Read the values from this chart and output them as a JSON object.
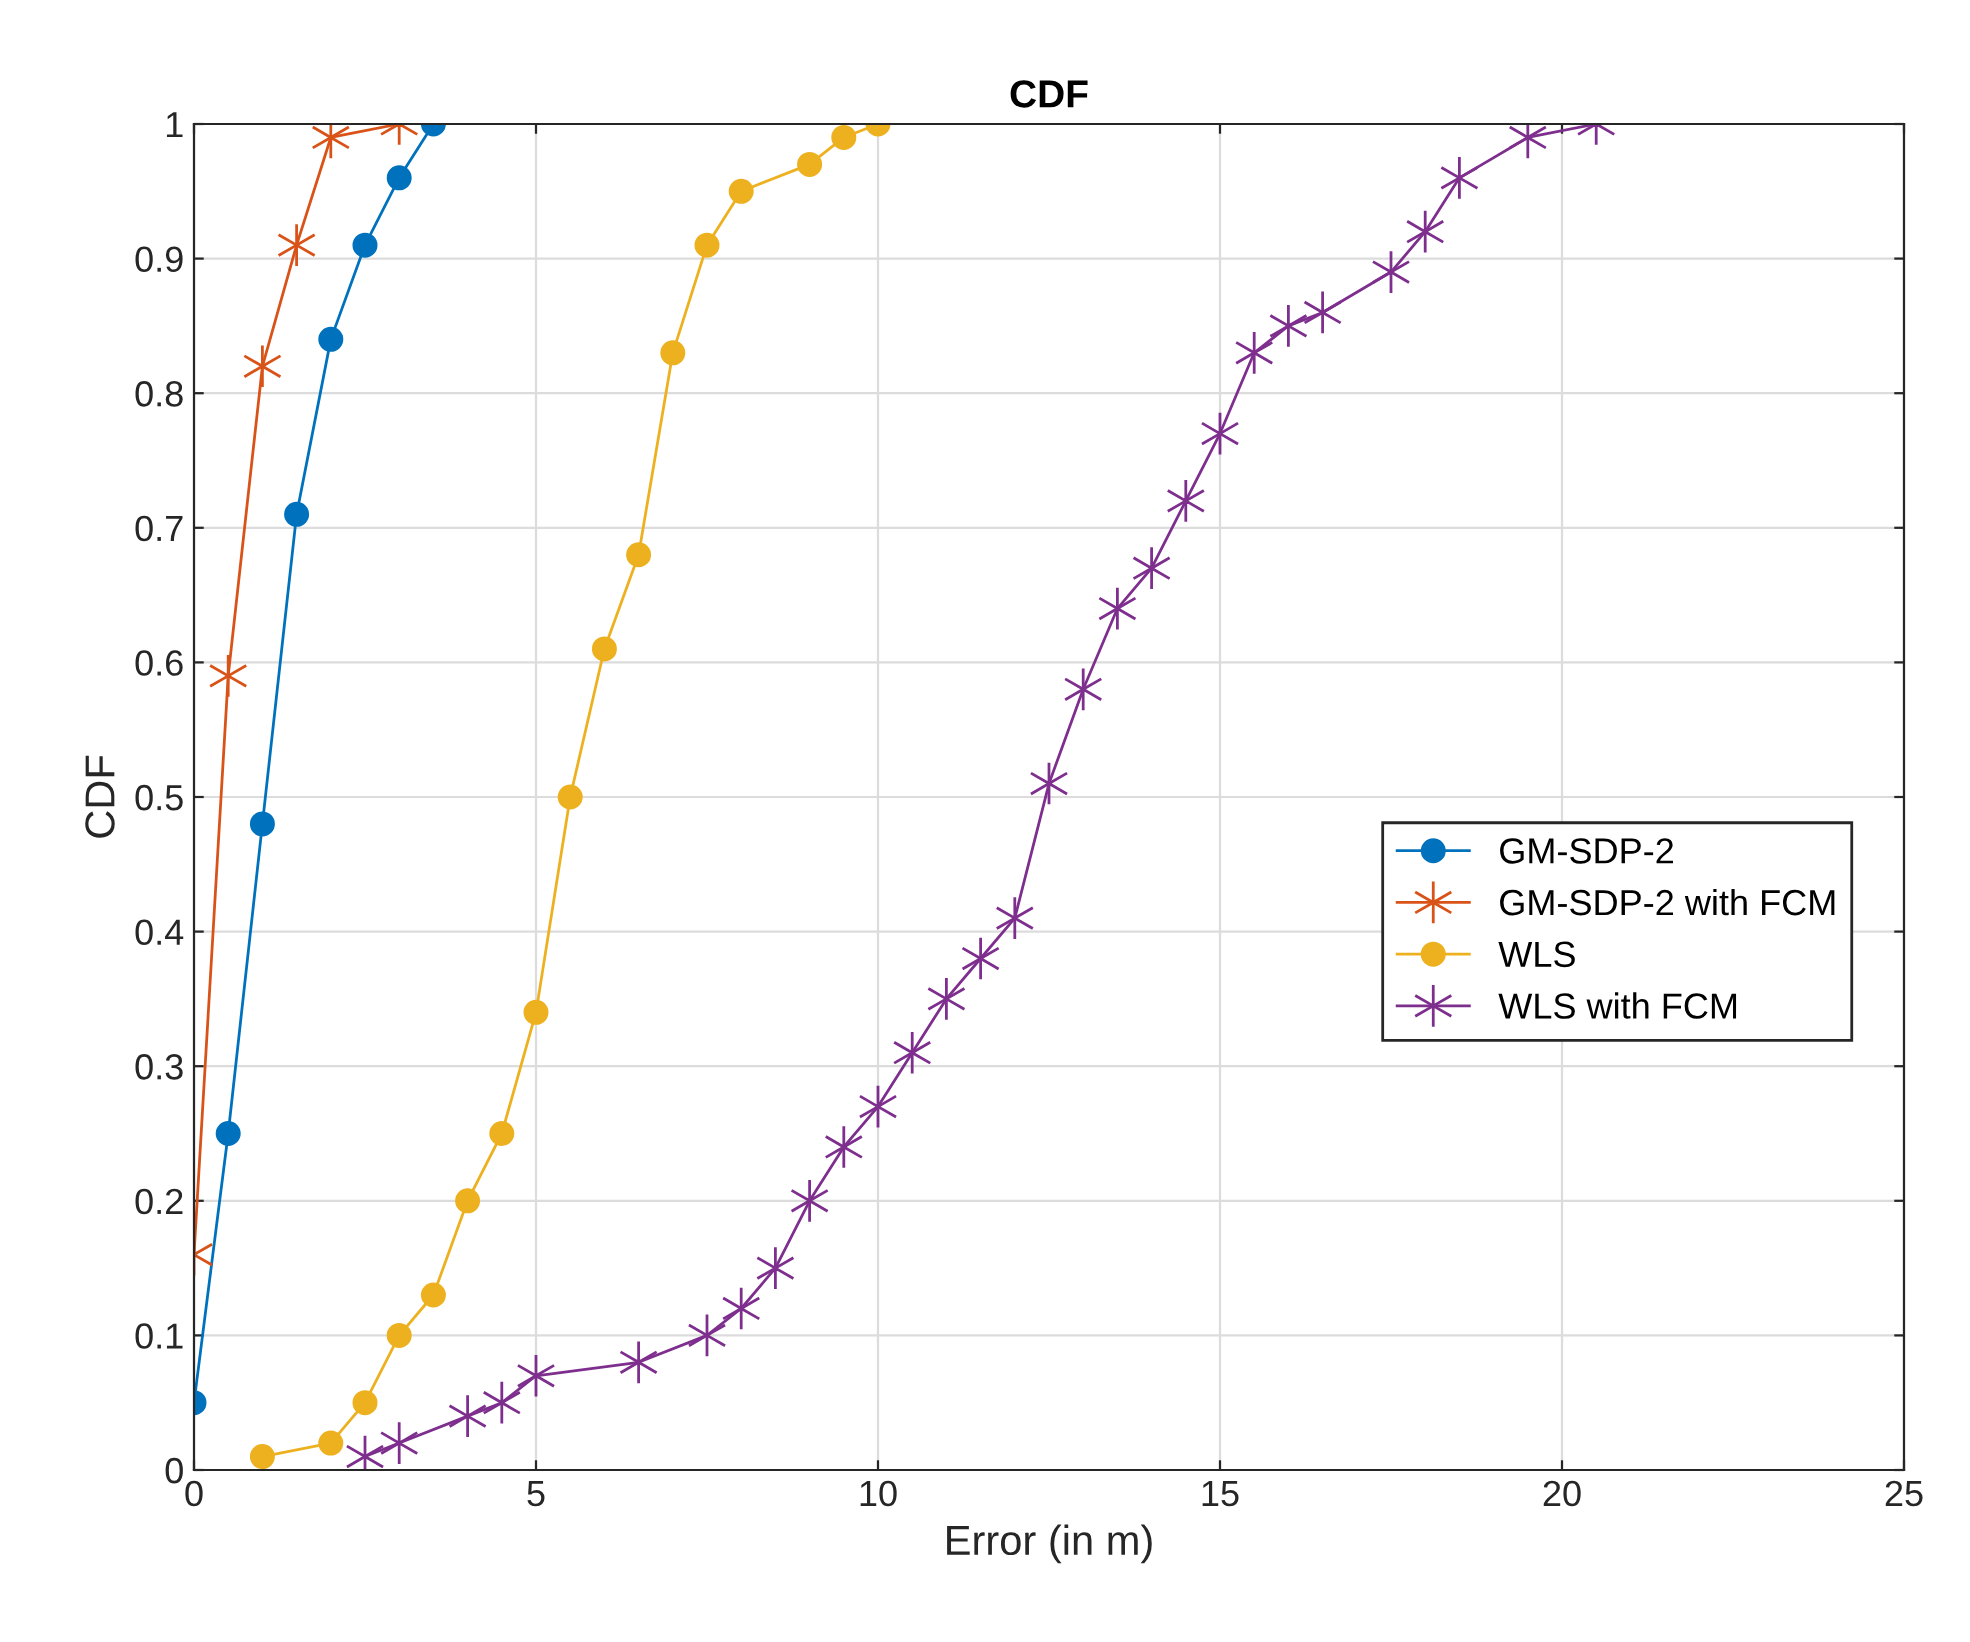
{
  "chart_data": {
    "type": "line",
    "title": "CDF",
    "xlabel": "Error (in m)",
    "ylabel": "CDF",
    "xlim": [
      0,
      25
    ],
    "xticks": [
      0,
      5,
      10,
      15,
      20,
      25
    ],
    "ylim": [
      0,
      1
    ],
    "yticks": [
      0,
      0.1,
      0.2,
      0.3,
      0.4,
      0.5,
      0.6,
      0.7,
      0.8,
      0.9,
      1
    ],
    "grid": true,
    "legend": "right",
    "line_style": "solid",
    "series": [
      {
        "name": "GM-SDP-2",
        "color": "#0072bd",
        "marker": "circle",
        "x": [
          0,
          0.5,
          1,
          1.5,
          2,
          2.5,
          3,
          3.5
        ],
        "values": [
          0.05,
          0.25,
          0.48,
          0.71,
          0.84,
          0.91,
          0.96,
          1.0
        ]
      },
      {
        "name": "GM-SDP-2 with FCM",
        "color": "#d95319",
        "marker": "cross",
        "x": [
          0,
          0.5,
          1,
          1.5,
          2,
          3
        ],
        "values": [
          0.16,
          0.59,
          0.82,
          0.91,
          0.99,
          1.0
        ]
      },
      {
        "name": "WLS",
        "color": "#edb120",
        "marker": "circle",
        "x": [
          1,
          2,
          2.5,
          3,
          3.5,
          4,
          4.5,
          5,
          5.5,
          6,
          6.5,
          7,
          7.5,
          8,
          9,
          9.5,
          10
        ],
        "values": [
          0.01,
          0.02,
          0.05,
          0.1,
          0.13,
          0.2,
          0.25,
          0.34,
          0.5,
          0.61,
          0.68,
          0.83,
          0.91,
          0.95,
          0.97,
          0.99,
          1.0
        ]
      },
      {
        "name": "WLS with FCM",
        "color": "#7e2f8e",
        "marker": "cross",
        "x": [
          2.5,
          3,
          4,
          4.5,
          5,
          6.5,
          7.5,
          8,
          8.5,
          9,
          9.5,
          10,
          10.5,
          11,
          11.5,
          12,
          12.5,
          13,
          13.5,
          14,
          14.5,
          15,
          15.5,
          16,
          16.5,
          17.5,
          18,
          18.5,
          19.5,
          20.5
        ],
        "values": [
          0.01,
          0.02,
          0.04,
          0.05,
          0.07,
          0.08,
          0.1,
          0.12,
          0.15,
          0.2,
          0.24,
          0.27,
          0.31,
          0.35,
          0.38,
          0.41,
          0.51,
          0.58,
          0.64,
          0.67,
          0.72,
          0.77,
          0.83,
          0.85,
          0.86,
          0.89,
          0.92,
          0.96,
          0.99,
          1.0
        ]
      }
    ]
  }
}
